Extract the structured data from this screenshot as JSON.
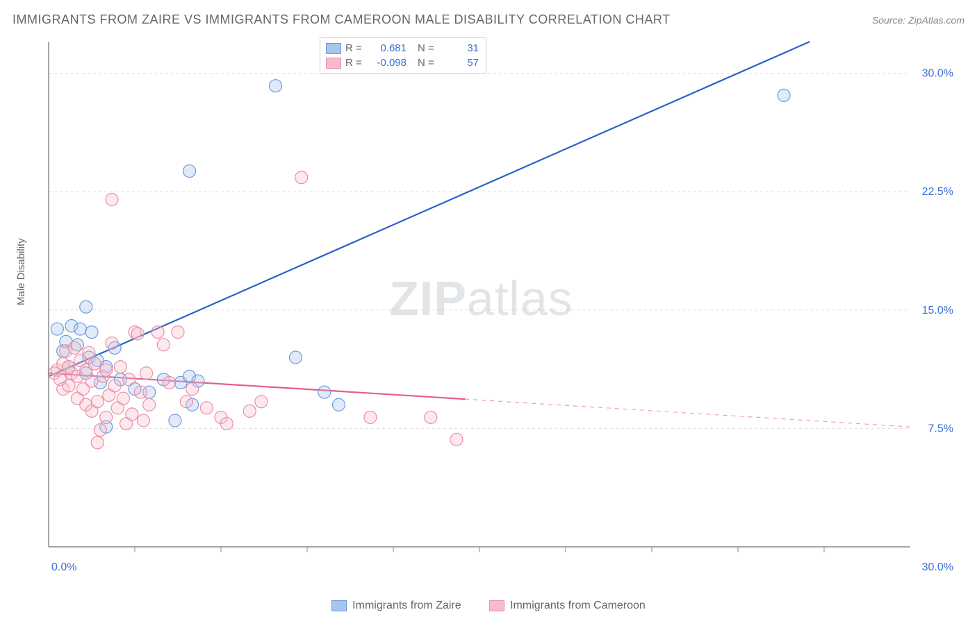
{
  "title": "IMMIGRANTS FROM ZAIRE VS IMMIGRANTS FROM CAMEROON MALE DISABILITY CORRELATION CHART",
  "source": "Source: ZipAtlas.com",
  "ylabel": "Male Disability",
  "watermark": {
    "bold": "ZIP",
    "rest": "atlas"
  },
  "chart": {
    "type": "scatter",
    "background_color": "#ffffff",
    "axis_line_color": "#888888",
    "grid_color": "#dddddd",
    "grid_dash": "4 4",
    "xlim": [
      0,
      30
    ],
    "ylim": [
      0,
      32
    ],
    "x_axis_label_min": "0.0%",
    "x_axis_label_max": "30.0%",
    "y_ticks": [
      7.5,
      15.0,
      22.5,
      30.0
    ],
    "y_tick_labels": [
      "7.5%",
      "15.0%",
      "22.5%",
      "30.0%"
    ],
    "x_minor_ticks": [
      3,
      6,
      9,
      12,
      15,
      18,
      21,
      24,
      27
    ],
    "axis_label_color": "#3b6fd6",
    "axis_label_fontsize": 16,
    "marker_radius": 9,
    "marker_stroke_width": 1.2,
    "marker_fill_opacity": 0.35,
    "line_width": 2.2
  },
  "series": [
    {
      "name": "Immigrants from Zaire",
      "color": "#6b9ae0",
      "fill": "#a9c5ec",
      "line_color": "#2b5fc9",
      "stats": {
        "R": "0.681",
        "N": "31"
      },
      "regression": {
        "x1": 0,
        "y1": 10.8,
        "x2": 26.5,
        "y2": 32,
        "solid_end_x": 26.5
      },
      "points": [
        [
          0.3,
          13.8
        ],
        [
          0.5,
          12.4
        ],
        [
          0.6,
          13.0
        ],
        [
          0.7,
          11.4
        ],
        [
          0.8,
          14.0
        ],
        [
          1.0,
          12.8
        ],
        [
          1.1,
          13.8
        ],
        [
          1.3,
          11.0
        ],
        [
          1.4,
          12.0
        ],
        [
          1.5,
          13.6
        ],
        [
          1.7,
          11.8
        ],
        [
          1.3,
          15.2
        ],
        [
          1.8,
          10.4
        ],
        [
          2.0,
          11.4
        ],
        [
          2.0,
          7.6
        ],
        [
          2.3,
          12.6
        ],
        [
          2.5,
          10.6
        ],
        [
          3.0,
          10.0
        ],
        [
          3.5,
          9.8
        ],
        [
          4.0,
          10.6
        ],
        [
          4.4,
          8.0
        ],
        [
          4.6,
          10.4
        ],
        [
          4.9,
          10.8
        ],
        [
          5.0,
          9.0
        ],
        [
          5.2,
          10.5
        ],
        [
          4.9,
          23.8
        ],
        [
          7.9,
          29.2
        ],
        [
          8.6,
          12.0
        ],
        [
          9.6,
          9.8
        ],
        [
          10.1,
          9.0
        ],
        [
          25.6,
          28.6
        ]
      ]
    },
    {
      "name": "Immigrants from Cameroon",
      "color": "#e890a7",
      "fill": "#f6bccb",
      "line_color": "#e75f86",
      "stats": {
        "R": "-0.098",
        "N": "57"
      },
      "regression": {
        "x1": 0,
        "y1": 11.0,
        "x2": 30,
        "y2": 7.6,
        "solid_end_x": 14.5
      },
      "points": [
        [
          0.2,
          11.0
        ],
        [
          0.3,
          11.2
        ],
        [
          0.4,
          10.6
        ],
        [
          0.5,
          11.6
        ],
        [
          0.5,
          10.0
        ],
        [
          0.6,
          12.4
        ],
        [
          0.7,
          11.4
        ],
        [
          0.7,
          10.2
        ],
        [
          0.8,
          11.0
        ],
        [
          0.9,
          12.6
        ],
        [
          1.0,
          10.8
        ],
        [
          1.0,
          9.4
        ],
        [
          1.1,
          11.8
        ],
        [
          1.2,
          10.0
        ],
        [
          1.3,
          11.2
        ],
        [
          1.3,
          9.0
        ],
        [
          1.4,
          12.3
        ],
        [
          1.5,
          10.5
        ],
        [
          1.5,
          8.6
        ],
        [
          1.6,
          11.6
        ],
        [
          1.7,
          9.2
        ],
        [
          1.8,
          7.4
        ],
        [
          1.9,
          10.8
        ],
        [
          2.0,
          8.2
        ],
        [
          2.0,
          11.2
        ],
        [
          2.1,
          9.6
        ],
        [
          2.2,
          12.9
        ],
        [
          2.3,
          10.2
        ],
        [
          2.4,
          8.8
        ],
        [
          1.7,
          6.6
        ],
        [
          2.5,
          11.4
        ],
        [
          2.6,
          9.4
        ],
        [
          2.7,
          7.8
        ],
        [
          2.8,
          10.6
        ],
        [
          2.9,
          8.4
        ],
        [
          2.2,
          22.0
        ],
        [
          3.0,
          13.6
        ],
        [
          3.1,
          13.5
        ],
        [
          3.2,
          9.8
        ],
        [
          3.3,
          8.0
        ],
        [
          3.4,
          11.0
        ],
        [
          3.5,
          9.0
        ],
        [
          3.8,
          13.6
        ],
        [
          4.0,
          12.8
        ],
        [
          4.2,
          10.4
        ],
        [
          4.5,
          13.6
        ],
        [
          4.8,
          9.2
        ],
        [
          5.0,
          10.0
        ],
        [
          5.5,
          8.8
        ],
        [
          6.0,
          8.2
        ],
        [
          6.2,
          7.8
        ],
        [
          7.0,
          8.6
        ],
        [
          7.4,
          9.2
        ],
        [
          8.8,
          23.4
        ],
        [
          11.2,
          8.2
        ],
        [
          13.3,
          8.2
        ],
        [
          14.2,
          6.8
        ]
      ]
    }
  ],
  "legend_top": {
    "r_label": "R =",
    "n_label": "N =",
    "value_color": "#3b6fd6"
  },
  "legend_bottom_labels": [
    "Immigrants from Zaire",
    "Immigrants from Cameroon"
  ]
}
